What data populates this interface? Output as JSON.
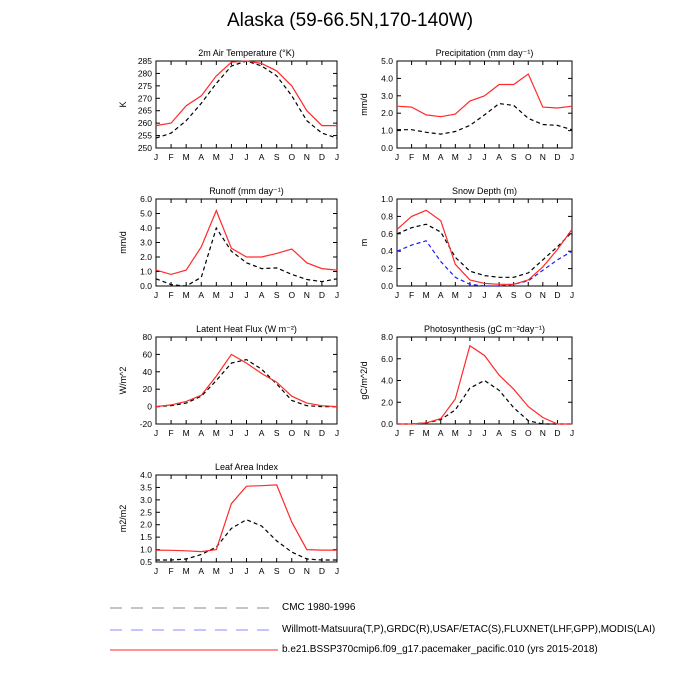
{
  "title": "Alaska (59-66.5N,170-140W)",
  "colors": {
    "cmc": "#000000",
    "obs": "#1a1aff",
    "model": "#ff2a2a"
  },
  "legend": [
    {
      "key": "cmc",
      "label": "CMC 1980-1996"
    },
    {
      "key": "obs",
      "label": "Willmott-Matsuura(T,P),GRDC(R),USAF/ETAC(S),FLUXNET(LHF,GPP),MODIS(LAI)"
    },
    {
      "key": "model",
      "label": "b.e21.BSSP370cmip6.f09_g17.pacemaker_pacific.010 (yrs 2015-2018)"
    }
  ],
  "chart_data": [
    {
      "type": "line",
      "title": "2m Air Temperature (°K)",
      "ylabel": "K",
      "categories": [
        "J",
        "F",
        "M",
        "A",
        "M",
        "J",
        "J",
        "A",
        "S",
        "O",
        "N",
        "D",
        "J"
      ],
      "ylim": [
        250,
        285
      ],
      "yticks": [
        250,
        255,
        260,
        265,
        270,
        275,
        280,
        285
      ],
      "ytick_labels": [
        "250",
        "255",
        "260",
        "265",
        "270",
        "275",
        "280",
        "285"
      ],
      "series": [
        {
          "key": "cmc",
          "values": [
            254,
            256,
            261,
            268,
            276,
            283,
            285,
            283,
            279,
            271,
            261,
            256,
            254
          ]
        },
        {
          "key": "model",
          "values": [
            259,
            260,
            267,
            271,
            279,
            284.5,
            285,
            284,
            281,
            275,
            265,
            259,
            259
          ]
        }
      ]
    },
    {
      "type": "line",
      "title": "Precipitation (mm day⁻¹)",
      "ylabel": "mm/d",
      "categories": [
        "J",
        "F",
        "M",
        "A",
        "M",
        "J",
        "J",
        "A",
        "S",
        "O",
        "N",
        "D",
        "J"
      ],
      "ylim": [
        0,
        5
      ],
      "yticks": [
        0,
        1,
        2,
        3,
        4,
        5
      ],
      "ytick_labels": [
        "0.0",
        "1.0",
        "2.0",
        "3.0",
        "4.0",
        "5.0"
      ],
      "series": [
        {
          "key": "cmc",
          "values": [
            1.05,
            1.05,
            0.9,
            0.8,
            0.95,
            1.3,
            1.9,
            2.55,
            2.45,
            1.7,
            1.35,
            1.3,
            1.05
          ]
        },
        {
          "key": "model",
          "values": [
            2.4,
            2.35,
            1.9,
            1.8,
            1.95,
            2.7,
            3.0,
            3.65,
            3.65,
            4.25,
            2.35,
            2.3,
            2.4
          ]
        }
      ]
    },
    {
      "type": "line",
      "title": "Runoff (mm day⁻¹)",
      "ylabel": "mm/d",
      "categories": [
        "J",
        "F",
        "M",
        "A",
        "M",
        "J",
        "J",
        "A",
        "S",
        "O",
        "N",
        "D",
        "J"
      ],
      "ylim": [
        0,
        6
      ],
      "yticks": [
        0,
        1,
        2,
        3,
        4,
        5,
        6
      ],
      "ytick_labels": [
        "0.0",
        "1.0",
        "2.0",
        "3.0",
        "4.0",
        "5.0",
        "6.0"
      ],
      "series": [
        {
          "key": "cmc",
          "values": [
            0.5,
            0.1,
            0.0,
            0.6,
            4.0,
            2.4,
            1.6,
            1.2,
            1.25,
            0.8,
            0.45,
            0.3,
            0.5
          ]
        },
        {
          "key": "model",
          "values": [
            1.1,
            0.8,
            1.1,
            2.7,
            5.2,
            2.6,
            2.0,
            2.0,
            2.25,
            2.55,
            1.6,
            1.2,
            1.1
          ]
        }
      ]
    },
    {
      "type": "line",
      "title": "Snow Depth (m)",
      "ylabel": "m",
      "categories": [
        "J",
        "F",
        "M",
        "A",
        "M",
        "J",
        "J",
        "A",
        "S",
        "O",
        "N",
        "D",
        "J"
      ],
      "ylim": [
        0,
        1
      ],
      "yticks": [
        0,
        0.2,
        0.4,
        0.6,
        0.8,
        1.0
      ],
      "ytick_labels": [
        "0.0",
        "0.2",
        "0.4",
        "0.6",
        "0.8",
        "1.0"
      ],
      "series": [
        {
          "key": "cmc",
          "values": [
            0.6,
            0.67,
            0.71,
            0.62,
            0.33,
            0.17,
            0.12,
            0.1,
            0.1,
            0.15,
            0.3,
            0.45,
            0.62
          ]
        },
        {
          "key": "obs",
          "values": [
            0.4,
            0.47,
            0.52,
            0.28,
            0.1,
            0.02,
            0.0,
            0.0,
            0.02,
            0.06,
            0.18,
            0.3,
            0.4
          ]
        },
        {
          "key": "model",
          "values": [
            0.65,
            0.8,
            0.87,
            0.75,
            0.25,
            0.07,
            0.03,
            0.02,
            0.02,
            0.07,
            0.22,
            0.42,
            0.65
          ]
        }
      ]
    },
    {
      "type": "line",
      "title": "Latent Heat Flux (W m⁻²)",
      "ylabel": "W/m^2",
      "categories": [
        "J",
        "F",
        "M",
        "A",
        "M",
        "J",
        "J",
        "A",
        "S",
        "O",
        "N",
        "D",
        "J"
      ],
      "ylim": [
        -20,
        80
      ],
      "yticks": [
        -20,
        0,
        20,
        40,
        60,
        80
      ],
      "ytick_labels": [
        "-20",
        "0",
        "20",
        "40",
        "60",
        "80"
      ],
      "series": [
        {
          "key": "cmc",
          "values": [
            0,
            1,
            4,
            12,
            30,
            50,
            54,
            43,
            26,
            7,
            1,
            0,
            0
          ]
        },
        {
          "key": "model",
          "values": [
            0,
            2,
            6,
            13,
            35,
            60,
            50,
            38,
            28,
            12,
            4,
            1,
            0
          ]
        }
      ]
    },
    {
      "type": "line",
      "title": "Photosynthesis (gC m⁻²day⁻¹)",
      "ylabel": "gC/m^2/d",
      "categories": [
        "J",
        "F",
        "M",
        "A",
        "M",
        "J",
        "J",
        "A",
        "S",
        "O",
        "N",
        "D",
        "J"
      ],
      "ylim": [
        0,
        8
      ],
      "yticks": [
        0,
        2,
        4,
        6,
        8
      ],
      "ytick_labels": [
        "0.0",
        "2.0",
        "4.0",
        "6.0",
        "8.0"
      ],
      "series": [
        {
          "key": "cmc",
          "values": [
            0,
            0,
            0.1,
            0.4,
            1.3,
            3.3,
            4.0,
            3.1,
            1.5,
            0.3,
            0,
            0,
            0
          ]
        },
        {
          "key": "model",
          "values": [
            0,
            0,
            0.1,
            0.5,
            2.3,
            7.2,
            6.3,
            4.5,
            3.2,
            1.6,
            0.6,
            0,
            0
          ]
        }
      ]
    },
    {
      "type": "line",
      "title": "Leaf Area Index",
      "ylabel": "m2/m2",
      "categories": [
        "J",
        "F",
        "M",
        "A",
        "M",
        "J",
        "J",
        "A",
        "S",
        "O",
        "N",
        "D",
        "J"
      ],
      "ylim": [
        0.5,
        4.0
      ],
      "yticks": [
        0.5,
        1.0,
        1.5,
        2.0,
        2.5,
        3.0,
        3.5,
        4.0
      ],
      "ytick_labels": [
        "0.5",
        "1.0",
        "1.5",
        "2.0",
        "2.5",
        "3.0",
        "3.5",
        "4.0"
      ],
      "series": [
        {
          "key": "cmc",
          "values": [
            0.58,
            0.58,
            0.62,
            0.8,
            1.1,
            1.85,
            2.2,
            1.95,
            1.35,
            0.9,
            0.62,
            0.58,
            0.58
          ]
        },
        {
          "key": "model",
          "values": [
            0.98,
            0.97,
            0.95,
            0.92,
            1.0,
            2.85,
            3.55,
            3.57,
            3.6,
            2.1,
            1.0,
            0.98,
            0.98
          ]
        }
      ]
    }
  ]
}
